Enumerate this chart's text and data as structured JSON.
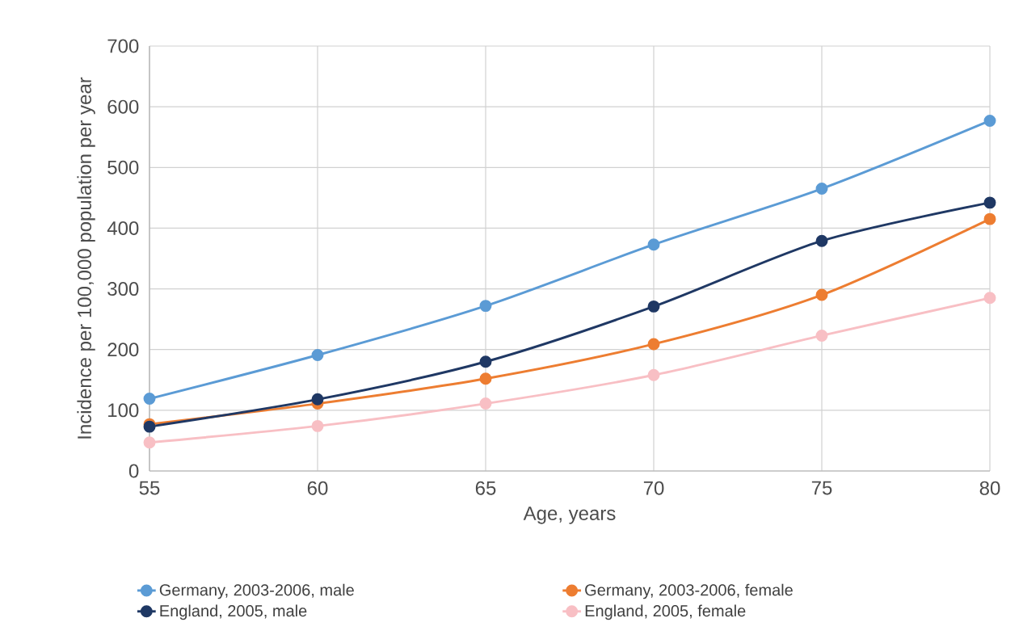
{
  "chart_data": {
    "type": "line",
    "xlabel": "Age, years",
    "ylabel": "Incidence per 100,000 population per year",
    "x": [
      55,
      60,
      65,
      70,
      75,
      80
    ],
    "series": [
      {
        "name": "Germany, 2003-2006, male",
        "color": "#5b9bd5",
        "values": [
          119,
          191,
          272,
          373,
          465,
          577
        ]
      },
      {
        "name": "Germany, 2003-2006, female",
        "color": "#ed7d31",
        "values": [
          77,
          111,
          152,
          209,
          290,
          415
        ]
      },
      {
        "name": "England,  2005, male",
        "color": "#1f3864",
        "values": [
          73,
          118,
          180,
          271,
          379,
          442
        ]
      },
      {
        "name": "England,  2005, female",
        "color": "#f8bfc4",
        "values": [
          47,
          74,
          111,
          158,
          223,
          285
        ]
      }
    ],
    "xlim": [
      55,
      80
    ],
    "xticks": [
      55,
      60,
      65,
      70,
      75,
      80
    ],
    "ylim": [
      0,
      700
    ],
    "yticks": [
      0,
      100,
      200,
      300,
      400,
      500,
      600,
      700
    ],
    "grid": true,
    "legend": "bottom",
    "marker": "circle",
    "line_style": "solid"
  }
}
